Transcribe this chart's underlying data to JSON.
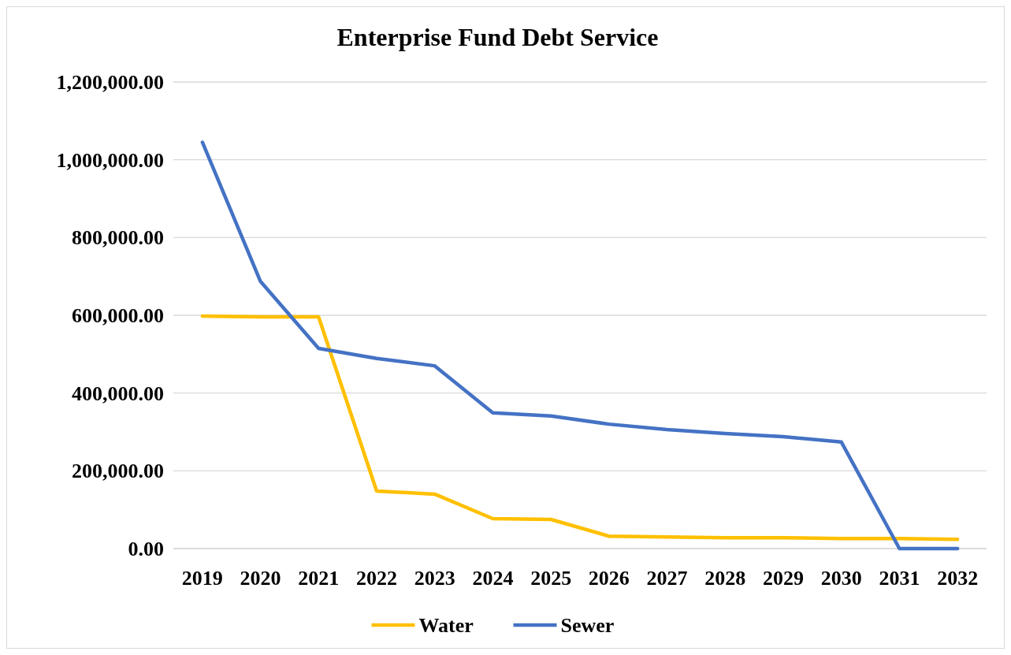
{
  "chart_data": {
    "type": "line",
    "title": "Enterprise Fund Debt Service",
    "categories": [
      "2019",
      "2020",
      "2021",
      "2022",
      "2023",
      "2024",
      "2025",
      "2026",
      "2027",
      "2028",
      "2029",
      "2030",
      "2031",
      "2032"
    ],
    "series": [
      {
        "name": "Water",
        "color": "#ffc000",
        "values": [
          598000,
          596000,
          596000,
          148000,
          140000,
          77000,
          75000,
          32000,
          30000,
          28000,
          28000,
          26000,
          26000,
          24000
        ]
      },
      {
        "name": "Sewer",
        "color": "#4472c4",
        "values": [
          1045000,
          687000,
          515000,
          489000,
          470000,
          349000,
          341000,
          320000,
          306000,
          296000,
          288000,
          274000,
          0,
          0
        ]
      }
    ],
    "ylim": [
      0,
      1200000
    ],
    "yticks": [
      {
        "value": 0,
        "label": "0.00"
      },
      {
        "value": 200000,
        "label": "200,000.00"
      },
      {
        "value": 400000,
        "label": "400,000.00"
      },
      {
        "value": 600000,
        "label": "600,000.00"
      },
      {
        "value": 800000,
        "label": "800,000.00"
      },
      {
        "value": 1000000,
        "label": "1,000,000.00"
      },
      {
        "value": 1200000,
        "label": "1,200,000.00"
      }
    ],
    "grid": "y",
    "legend": "bottom",
    "marker": "none",
    "line_style": "solid"
  }
}
